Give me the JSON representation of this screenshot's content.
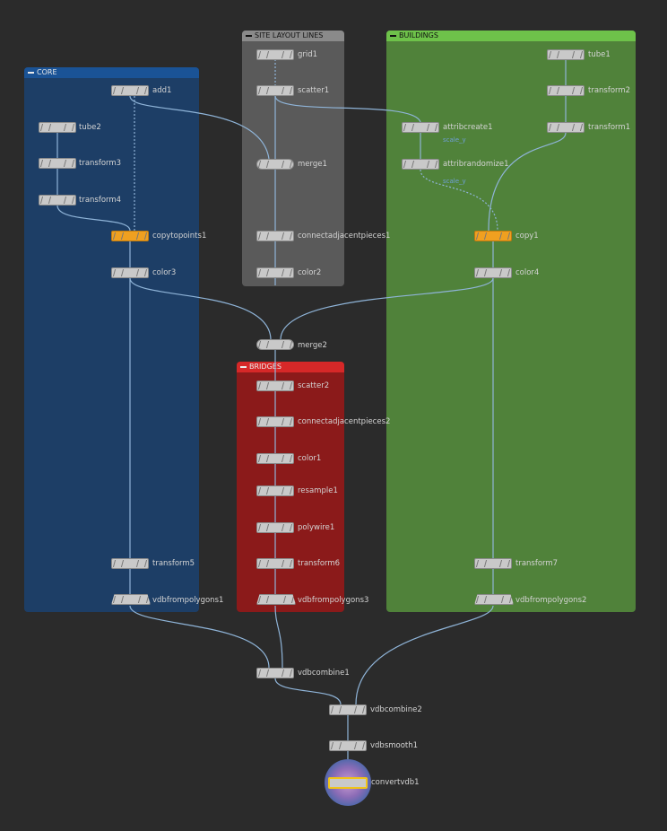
{
  "network_boxes": {
    "core": "CORE",
    "site": "SITE LAYOUT LINES",
    "buildings": "BUILDINGS",
    "bridges": "BRIDGES"
  },
  "nodes": {
    "add1": "add1",
    "tube2": "tube2",
    "transform3": "transform3",
    "transform4": "transform4",
    "copytopoints1": "copytopoints1",
    "color3": "color3",
    "transform5": "transform5",
    "vdbfrompolygons1": "vdbfrompolygons1",
    "grid1": "grid1",
    "scatter1": "scatter1",
    "merge1": "merge1",
    "connectadjacentpieces1": "connectadjacentpieces1",
    "color2": "color2",
    "tube1": "tube1",
    "transform2": "transform2",
    "transform1": "transform1",
    "attribcreate1": "attribcreate1",
    "attribrandomize1": "attribrandomize1",
    "copy1": "copy1",
    "color4": "color4",
    "transform7": "transform7",
    "vdbfrompolygons2": "vdbfrompolygons2",
    "merge2": "merge2",
    "scatter2": "scatter2",
    "connectadjacentpieces2": "connectadjacentpieces2",
    "color1": "color1",
    "resample1": "resample1",
    "polywire1": "polywire1",
    "transform6": "transform6",
    "vdbfrompolygons3": "vdbfrompolygons3",
    "vdbcombine1": "vdbcombine1",
    "vdbcombine2": "vdbcombine2",
    "vdbsmooth1": "vdbsmooth1",
    "convertvdb1": "convertvdb1"
  },
  "sublabels": {
    "attribcreate1": "scale_y",
    "attribrandomize1": "scale_y"
  },
  "colors": {
    "core": "#1d3e66",
    "site": "#5a5a5a",
    "buildings": "#50823a",
    "bridges": "#8b1a1a",
    "wire": "#8fb4d8",
    "selected": "#f0c419"
  }
}
